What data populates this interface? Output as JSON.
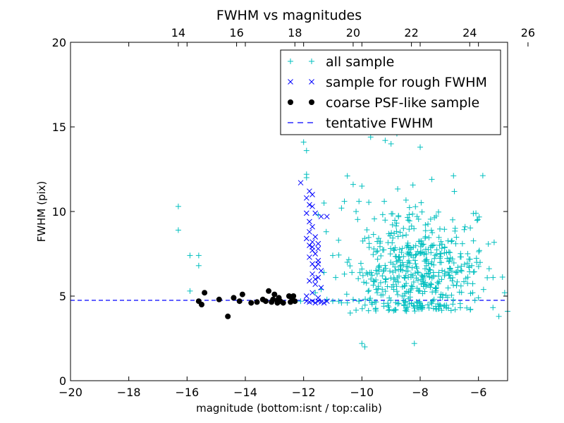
{
  "chart_data": {
    "type": "scatter",
    "title": "FWHM vs magnitudes",
    "xlabel": "magnitude (bottom:isnt / top:calib)",
    "ylabel": "FWHM (pix)",
    "xlim": [
      -20,
      -5
    ],
    "ylim": [
      0,
      20
    ],
    "x_ticks": [
      -20,
      -18,
      -16,
      -14,
      -12,
      -10,
      -8,
      -6
    ],
    "y_ticks": [
      0,
      5,
      10,
      15,
      20
    ],
    "top_axis": {
      "label_offset": 30.3,
      "ticks": [
        14,
        16,
        18,
        20,
        22,
        24,
        26
      ]
    },
    "grid": false,
    "legend_position": "top-right",
    "tentative_fwhm": 4.75,
    "series": [
      {
        "name": "all sample",
        "marker": "plus",
        "color": "#00bfbf",
        "generated_cloud": {
          "seed": 7,
          "count": 520,
          "x_center": -8.0,
          "x_spread": 1.0,
          "y_center": 6.5,
          "y_spread": 1.8
        },
        "points": [
          [
            -16.3,
            10.3
          ],
          [
            -16.3,
            8.9
          ],
          [
            -15.9,
            7.4
          ],
          [
            -15.6,
            7.4
          ],
          [
            -15.6,
            6.8
          ],
          [
            -15.9,
            5.3
          ],
          [
            -12.0,
            14.1
          ],
          [
            -11.9,
            13.6
          ],
          [
            -11.9,
            12.2
          ],
          [
            -11.9,
            12.0
          ],
          [
            -11.5,
            9.8
          ],
          [
            -11.3,
            10.5
          ],
          [
            -11.3,
            6.4
          ],
          [
            -11.6,
            5.2
          ],
          [
            -11.4,
            5.4
          ],
          [
            -11.0,
            4.7
          ],
          [
            -10.8,
            4.7
          ],
          [
            -10.7,
            4.6
          ],
          [
            -10.4,
            4.0
          ],
          [
            -10.5,
            4.6
          ],
          [
            -10.3,
            4.8
          ],
          [
            -10.1,
            4.7
          ],
          [
            -10.0,
            2.2
          ],
          [
            -9.9,
            2.0
          ],
          [
            -8.2,
            2.2
          ],
          [
            -9.7,
            14.4
          ],
          [
            -9.5,
            17.2
          ],
          [
            -9.4,
            16.2
          ],
          [
            -9.0,
            14.0
          ],
          [
            -8.4,
            17.5
          ],
          [
            -8.3,
            15.9
          ],
          [
            -8.1,
            15.8
          ],
          [
            -8.0,
            13.8
          ],
          [
            -7.6,
            11.9
          ],
          [
            -9.2,
            14.2
          ],
          [
            -8.8,
            14.6
          ],
          [
            -10.5,
            12.1
          ],
          [
            -10.3,
            11.6
          ],
          [
            -10.1,
            10.6
          ],
          [
            -10.0,
            11.5
          ],
          [
            -10.2,
            10.0
          ],
          [
            -10.6,
            10.6
          ],
          [
            -10.7,
            10.2
          ],
          [
            -10.8,
            8.3
          ],
          [
            -11.0,
            7.4
          ],
          [
            -10.9,
            6.1
          ],
          [
            -10.6,
            6.3
          ],
          [
            -10.5,
            7.0
          ],
          [
            -6.2,
            5.2
          ],
          [
            -6.0,
            4.9
          ],
          [
            -5.5,
            6.1
          ],
          [
            -5.3,
            3.8
          ],
          [
            -5.1,
            5.2
          ],
          [
            -5.0,
            4.1
          ],
          [
            -6.4,
            4.3
          ],
          [
            -6.6,
            5.6
          ],
          [
            -6.8,
            4.2
          ],
          [
            -7.1,
            4.3
          ],
          [
            -6.9,
            5.9
          ],
          [
            -9.8,
            6.3
          ],
          [
            -9.6,
            5.9
          ],
          [
            -9.4,
            6.8
          ],
          [
            -10.0,
            6.6
          ],
          [
            -11.2,
            4.8
          ],
          [
            -12.1,
            4.7
          ]
        ]
      },
      {
        "name": "sample for rough FWHM",
        "marker": "x",
        "color": "#0000ff",
        "points": [
          [
            -12.1,
            11.7
          ],
          [
            -11.8,
            11.2
          ],
          [
            -11.7,
            11.0
          ],
          [
            -11.9,
            10.8
          ],
          [
            -11.8,
            10.4
          ],
          [
            -11.7,
            10.3
          ],
          [
            -11.9,
            9.9
          ],
          [
            -11.6,
            9.9
          ],
          [
            -11.4,
            9.7
          ],
          [
            -11.2,
            9.7
          ],
          [
            -11.8,
            9.4
          ],
          [
            -11.7,
            9.1
          ],
          [
            -11.8,
            8.8
          ],
          [
            -11.6,
            8.5
          ],
          [
            -11.7,
            8.2
          ],
          [
            -11.5,
            8.1
          ],
          [
            -11.8,
            8.0
          ],
          [
            -11.5,
            7.8
          ],
          [
            -11.7,
            7.7
          ],
          [
            -11.6,
            7.5
          ],
          [
            -11.8,
            7.3
          ],
          [
            -11.5,
            7.1
          ],
          [
            -11.7,
            6.9
          ],
          [
            -11.6,
            6.7
          ],
          [
            -11.4,
            6.5
          ],
          [
            -11.7,
            6.3
          ],
          [
            -11.5,
            6.1
          ],
          [
            -11.8,
            5.9
          ],
          [
            -11.6,
            5.7
          ],
          [
            -11.4,
            5.5
          ],
          [
            -11.7,
            5.2
          ],
          [
            -11.9,
            5.0
          ],
          [
            -11.5,
            4.9
          ],
          [
            -11.9,
            4.7
          ],
          [
            -11.8,
            4.65
          ],
          [
            -11.7,
            4.7
          ],
          [
            -11.6,
            4.6
          ],
          [
            -11.5,
            4.7
          ],
          [
            -11.4,
            4.65
          ],
          [
            -11.3,
            4.6
          ],
          [
            -11.2,
            4.7
          ],
          [
            -11.6,
            6.0
          ],
          [
            -11.5,
            6.9
          ],
          [
            -11.7,
            7.9
          ],
          [
            -11.9,
            8.4
          ]
        ]
      },
      {
        "name": "coarse PSF-like sample",
        "marker": "circle",
        "color": "#000000",
        "points": [
          [
            -15.6,
            4.7
          ],
          [
            -15.5,
            4.5
          ],
          [
            -15.4,
            5.2
          ],
          [
            -14.9,
            4.8
          ],
          [
            -14.6,
            3.8
          ],
          [
            -14.4,
            4.9
          ],
          [
            -14.2,
            4.7
          ],
          [
            -14.1,
            5.1
          ],
          [
            -13.8,
            4.6
          ],
          [
            -13.6,
            4.65
          ],
          [
            -13.4,
            4.8
          ],
          [
            -13.3,
            4.7
          ],
          [
            -13.2,
            5.3
          ],
          [
            -13.1,
            4.65
          ],
          [
            -13.05,
            4.8
          ],
          [
            -13.0,
            5.1
          ],
          [
            -12.9,
            4.75
          ],
          [
            -12.85,
            4.9
          ],
          [
            -12.8,
            4.7
          ],
          [
            -12.7,
            4.6
          ],
          [
            -12.5,
            5.0
          ],
          [
            -12.4,
            4.9
          ],
          [
            -12.45,
            4.65
          ],
          [
            -12.3,
            4.7
          ],
          [
            -12.35,
            5.0
          ],
          [
            -12.9,
            4.6
          ]
        ]
      },
      {
        "name": "tentative FWHM",
        "marker": "dashed-line",
        "color": "#0000ff"
      }
    ]
  }
}
